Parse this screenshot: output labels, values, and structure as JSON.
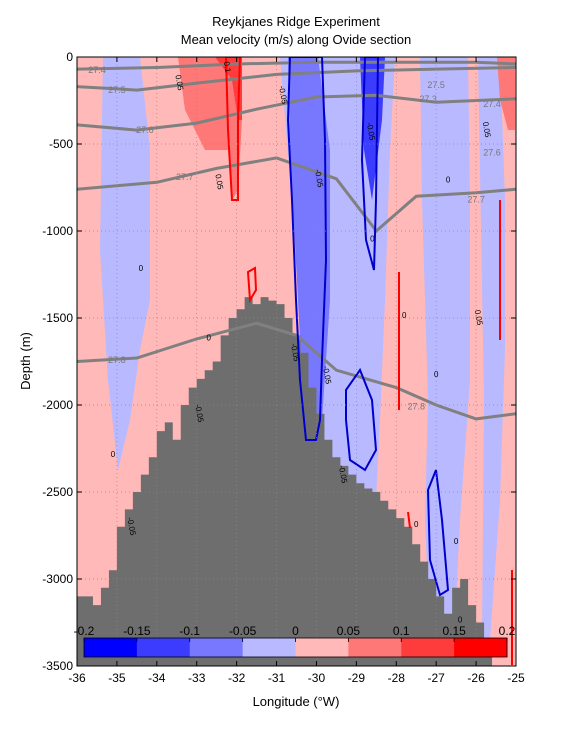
{
  "chart_data": {
    "type": "section-contour",
    "title": "Reykjanes Ridge Experiment",
    "subtitle": "Mean velocity (m/s) along Ovide section",
    "xlabel": "Longitude (°W)",
    "ylabel": "Depth (m)",
    "xlim": [
      -36,
      -25
    ],
    "ylim": [
      -3500,
      0
    ],
    "xticks": [
      -36,
      -35,
      -34,
      -33,
      -32,
      -31,
      -30,
      -29,
      -28,
      -27,
      -26,
      -25
    ],
    "yticks": [
      0,
      -500,
      -1000,
      -1500,
      -2000,
      -2500,
      -3000,
      -3500
    ],
    "grid": true,
    "colorbar": {
      "placement": "bottom-inside",
      "ticks": [
        "-0.2",
        "-0.15",
        "-0.1",
        "-0.05",
        "0",
        "0.05",
        "0.1",
        "0.15",
        "0.2"
      ],
      "colors": [
        "#0000ff",
        "#3c3cff",
        "#7878ff",
        "#b9b9ff",
        "#ffb9b9",
        "#ff7878",
        "#ff3c3c",
        "#ff0000"
      ]
    },
    "colors": {
      "positive_light": "#ffb9b9",
      "positive_mid": "#ff7878",
      "positive_strong": "#ff3c3c",
      "negative_light": "#b9b9ff",
      "negative_mid": "#7878ff",
      "negative_strong": "#3c3cff",
      "bathymetry": "#6e6e6e",
      "isopycnal": "#808080",
      "contour_blue": "#0000cc",
      "contour_red": "#ff0000"
    },
    "bathymetry": [
      [
        -36,
        -3100
      ],
      [
        -35.8,
        -3100
      ],
      [
        -35.6,
        -3150
      ],
      [
        -35.4,
        -3050
      ],
      [
        -35.2,
        -2950
      ],
      [
        -35.0,
        -2700
      ],
      [
        -34.8,
        -2600
      ],
      [
        -34.6,
        -2500
      ],
      [
        -34.4,
        -2400
      ],
      [
        -34.2,
        -2300
      ],
      [
        -34.0,
        -2150
      ],
      [
        -33.8,
        -2100
      ],
      [
        -33.6,
        -2200
      ],
      [
        -33.4,
        -2000
      ],
      [
        -33.2,
        -1900
      ],
      [
        -33.0,
        -1850
      ],
      [
        -32.8,
        -1800
      ],
      [
        -32.6,
        -1750
      ],
      [
        -32.4,
        -1600
      ],
      [
        -32.2,
        -1500
      ],
      [
        -32.0,
        -1450
      ],
      [
        -31.8,
        -1380
      ],
      [
        -31.6,
        -1420
      ],
      [
        -31.4,
        -1380
      ],
      [
        -31.2,
        -1400
      ],
      [
        -31.0,
        -1420
      ],
      [
        -30.8,
        -1500
      ],
      [
        -30.6,
        -1600
      ],
      [
        -30.4,
        -1700
      ],
      [
        -30.2,
        -1900
      ],
      [
        -30.0,
        -2050
      ],
      [
        -29.8,
        -2200
      ],
      [
        -29.6,
        -2300
      ],
      [
        -29.4,
        -2350
      ],
      [
        -29.2,
        -2400
      ],
      [
        -29.0,
        -2450
      ],
      [
        -28.8,
        -2480
      ],
      [
        -28.6,
        -2500
      ],
      [
        -28.4,
        -2550
      ],
      [
        -28.2,
        -2600
      ],
      [
        -28.0,
        -2650
      ],
      [
        -27.8,
        -2700
      ],
      [
        -27.6,
        -2800
      ],
      [
        -27.4,
        -2900
      ],
      [
        -27.2,
        -3000
      ],
      [
        -27.0,
        -3100
      ],
      [
        -26.8,
        -3200
      ],
      [
        -26.6,
        -3050
      ],
      [
        -26.4,
        -3000
      ],
      [
        -26.2,
        -3150
      ],
      [
        -26.0,
        -3250
      ],
      [
        -25.8,
        -3350
      ],
      [
        -25.6,
        -3500
      ],
      [
        -25.0,
        -3500
      ]
    ],
    "isopycnals": [
      {
        "label": "27.4",
        "points": [
          [
            -36,
            -70
          ],
          [
            -34,
            -60
          ],
          [
            -32,
            -40
          ],
          [
            -30,
            -30
          ],
          [
            -28,
            -30
          ],
          [
            -26,
            -30
          ],
          [
            -25,
            -40
          ]
        ]
      },
      {
        "label": "27.5",
        "points": [
          [
            -36,
            -170
          ],
          [
            -34.5,
            -190
          ],
          [
            -33,
            -150
          ],
          [
            -31,
            -100
          ],
          [
            -29,
            -80
          ],
          [
            -27,
            -70
          ],
          [
            -25,
            -60
          ]
        ]
      },
      {
        "label": "27.6",
        "points": [
          [
            -36,
            -390
          ],
          [
            -34.5,
            -420
          ],
          [
            -33,
            -380
          ],
          [
            -31.5,
            -300
          ],
          [
            -30,
            -230
          ],
          [
            -28.5,
            -220
          ],
          [
            -27,
            -260
          ],
          [
            -25,
            -240
          ]
        ]
      },
      {
        "label": "27.7",
        "points": [
          [
            -36,
            -760
          ],
          [
            -34,
            -720
          ],
          [
            -32.5,
            -640
          ],
          [
            -31,
            -580
          ],
          [
            -29.5,
            -700
          ],
          [
            -28.5,
            -1000
          ],
          [
            -27.5,
            -800
          ],
          [
            -26,
            -780
          ],
          [
            -25,
            -760
          ]
        ]
      },
      {
        "label": "27.8",
        "points": [
          [
            -36,
            -1750
          ],
          [
            -34.5,
            -1730
          ],
          [
            -33,
            -1620
          ],
          [
            -31.5,
            -1530
          ],
          [
            -30.5,
            -1600
          ],
          [
            -29.5,
            -1800
          ],
          [
            -28,
            -1900
          ],
          [
            -27,
            -2000
          ],
          [
            -26,
            -2080
          ],
          [
            -25,
            -2050
          ]
        ]
      }
    ],
    "isopycnal_labels": [
      {
        "text": "27.4",
        "x": -35.5,
        "y": -75
      },
      {
        "text": "27.5",
        "x": -35.0,
        "y": -190
      },
      {
        "text": "27.6",
        "x": -34.3,
        "y": -420
      },
      {
        "text": "27.7",
        "x": -33.3,
        "y": -690
      },
      {
        "text": "27.8",
        "x": -35.0,
        "y": -1740
      },
      {
        "text": "27.8",
        "x": -27.5,
        "y": -2010
      },
      {
        "text": "27.3",
        "x": -27.2,
        "y": -240
      },
      {
        "text": "27.5",
        "x": -27.0,
        "y": -160
      },
      {
        "text": "27.4",
        "x": -25.6,
        "y": -270
      },
      {
        "text": "27.6",
        "x": -25.6,
        "y": -550
      },
      {
        "text": "27.7",
        "x": -26.0,
        "y": -820
      }
    ],
    "velocity_labels": [
      {
        "text": "0",
        "x": -34.4,
        "y": -1230
      },
      {
        "text": "0",
        "x": -35.1,
        "y": -2300
      },
      {
        "text": "0",
        "x": -32.7,
        "y": -1630
      },
      {
        "text": "0",
        "x": -26.7,
        "y": -720
      },
      {
        "text": "0",
        "x": -27.8,
        "y": -1500
      },
      {
        "text": "0",
        "x": -27.0,
        "y": -1840
      },
      {
        "text": "0",
        "x": -28.6,
        "y": -1060
      },
      {
        "text": "0",
        "x": -27.5,
        "y": -2700
      },
      {
        "text": "0",
        "x": -26.5,
        "y": -2800
      },
      {
        "text": "0",
        "x": -26.4,
        "y": -3250
      },
      {
        "text": "-0.05",
        "x": -34.7,
        "y": -2700
      },
      {
        "text": "-0.05",
        "x": -33.0,
        "y": -2050
      },
      {
        "text": "-0.05",
        "x": -30.6,
        "y": -1700
      },
      {
        "text": "-0.05",
        "x": -29.8,
        "y": -1830
      },
      {
        "text": "-0.05",
        "x": -30.0,
        "y": -700
      },
      {
        "text": "-0.05",
        "x": -30.9,
        "y": -220
      },
      {
        "text": "-0.05",
        "x": -28.7,
        "y": -430
      },
      {
        "text": "-0.05",
        "x": -29.4,
        "y": -2400
      },
      {
        "text": "0.05",
        "x": -32.5,
        "y": -720
      },
      {
        "text": "0.05",
        "x": -33.5,
        "y": -150
      },
      {
        "text": "0.05",
        "x": -26.0,
        "y": -1500
      },
      {
        "text": "0.05",
        "x": -25.8,
        "y": -420
      },
      {
        "text": "0.1",
        "x": -32.3,
        "y": -60
      }
    ]
  }
}
